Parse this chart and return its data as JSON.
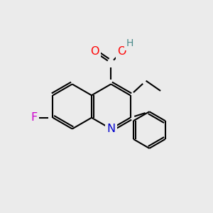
{
  "bg_color": "#ebebeb",
  "bond_color": "#000000",
  "bond_width": 1.5,
  "font_size": 11,
  "colors": {
    "O": "#ff0000",
    "N": "#0000cc",
    "F": "#cc00cc",
    "H": "#4a8a8a",
    "C": "#000000"
  },
  "figsize": [
    3.0,
    3.0
  ],
  "dpi": 100
}
